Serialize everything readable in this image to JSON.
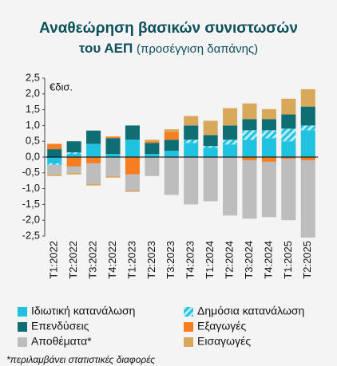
{
  "chart_data": {
    "type": "stacked_bar",
    "title": [
      "Αναθεώρηση βασικών συνιστωσών",
      "του ΑΕΠ"
    ],
    "subtitle": "(προσέγγιση δαπάνης)",
    "unit_label": "€δισ.",
    "footnote": "*περιλαμβάνει στατιστικές διαφορές",
    "categories": [
      "T1:2022",
      "T2:2022",
      "T3:2022",
      "T4:2022",
      "T1:2023",
      "T2:2023",
      "T3:2023",
      "T4:2023",
      "T1:2024",
      "T2:2024",
      "T3:2024",
      "T4:2024",
      "T1:2025",
      "T2:2025"
    ],
    "series": [
      {
        "name": "Ιδιωτική κατανάλωση",
        "color": "#1fc3e0",
        "values": [
          -0.2,
          0.1,
          0.42,
          0.1,
          0.55,
          0.1,
          0.2,
          0.45,
          0.3,
          0.4,
          0.55,
          0.6,
          0.5,
          0.85
        ]
      },
      {
        "name": "Δημόσια κατανάλωση",
        "color": "#b9ebf6",
        "hatch": true,
        "values": [
          -0.05,
          0.05,
          0,
          0,
          0,
          0,
          0,
          0.1,
          0.05,
          0.15,
          0.3,
          0.25,
          0.4,
          0.15
        ]
      },
      {
        "name": "Επενδύσεις",
        "color": "#0f6e73",
        "values": [
          0.25,
          0.35,
          0.42,
          0.5,
          0.45,
          0.35,
          0.35,
          0.45,
          0.35,
          0.45,
          0.35,
          0.35,
          0.45,
          0.6
        ]
      },
      {
        "name": "Εξαγωγές",
        "color": "#f57f20",
        "values": [
          0.17,
          -0.3,
          -0.2,
          0.05,
          -0.55,
          0.05,
          0.25,
          0,
          0,
          0,
          -0.1,
          -0.15,
          -0.05,
          -0.1
        ]
      },
      {
        "name": "Αποθέματα*",
        "color": "#bdbdbd",
        "values": [
          -0.3,
          -0.2,
          -0.65,
          -0.6,
          -0.5,
          -0.6,
          -1.2,
          -1.5,
          -1.4,
          -1.85,
          -1.85,
          -1.75,
          -1.95,
          -2.45
        ]
      },
      {
        "name": "Εισαγωγές",
        "color": "#d9a95b",
        "values": [
          -0.05,
          -0.05,
          -0.05,
          -0.05,
          -0.05,
          0.05,
          0.08,
          0.3,
          0.45,
          0.55,
          0.5,
          0.32,
          0.5,
          0.55
        ]
      }
    ],
    "ylim": [
      -2.5,
      2.5
    ],
    "yticks": [
      {
        "value": 2.5,
        "label": "2,5"
      },
      {
        "value": 2,
        "label": "2,0"
      },
      {
        "value": 1.5,
        "label": "1,5"
      },
      {
        "value": 1,
        "label": "1,0"
      },
      {
        "value": 0.5,
        "label": "0,5"
      },
      {
        "value": 0,
        "label": "0,0"
      },
      {
        "value": -0.5,
        "label": "-0,5"
      },
      {
        "value": -1,
        "label": "-1,0"
      },
      {
        "value": -1.5,
        "label": "-1,5"
      },
      {
        "value": -2,
        "label": "-2,0"
      },
      {
        "value": -2.5,
        "label": "-2,5"
      }
    ]
  }
}
